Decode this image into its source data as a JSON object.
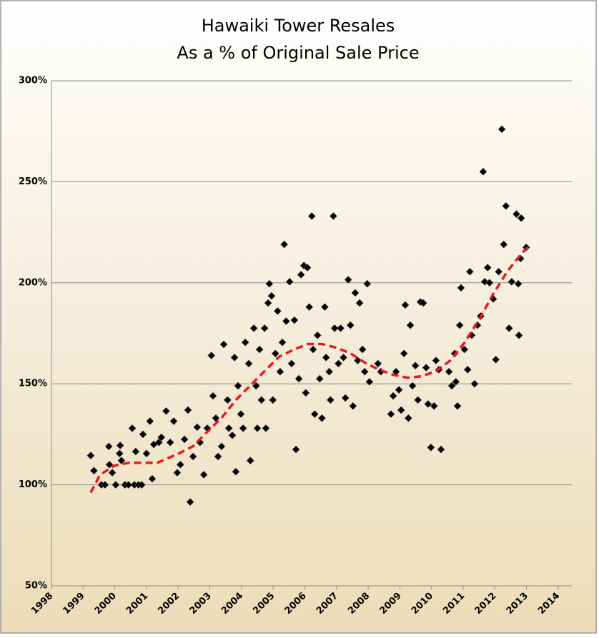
{
  "chart_data": {
    "type": "scatter",
    "title": "Hawaiki Tower Resales",
    "subtitle": "As a % of Original Sale Price",
    "color": "#000000",
    "x": [
      1999.24,
      1999.34,
      1999.58,
      1999.69,
      1999.81,
      1999.83,
      1999.92,
      2000.03,
      2000.15,
      2000.17,
      2000.21,
      2000.32,
      2000.43,
      2000.55,
      2000.62,
      2000.66,
      2000.75,
      2000.85,
      2000.89,
      2001.0,
      2001.11,
      2001.18,
      2001.23,
      2001.39,
      2001.47,
      2001.62,
      2001.75,
      2001.86,
      2001.97,
      2002.07,
      2002.2,
      2002.31,
      2002.38,
      2002.47,
      2002.6,
      2002.69,
      2002.81,
      2002.92,
      2003.05,
      2003.1,
      2003.19,
      2003.26,
      2003.37,
      2003.44,
      2003.56,
      2003.6,
      2003.71,
      2003.78,
      2003.82,
      2003.89,
      2003.98,
      2004.05,
      2004.12,
      2004.23,
      2004.28,
      2004.39,
      2004.46,
      2004.5,
      2004.57,
      2004.63,
      2004.73,
      2004.77,
      2004.84,
      2004.88,
      2004.95,
      2004.99,
      2005.07,
      2005.14,
      2005.22,
      2005.29,
      2005.35,
      2005.41,
      2005.52,
      2005.58,
      2005.67,
      2005.72,
      2005.81,
      2005.88,
      2005.97,
      2006.03,
      2006.08,
      2006.14,
      2006.22,
      2006.26,
      2006.31,
      2006.4,
      2006.47,
      2006.54,
      2006.63,
      2006.67,
      2006.77,
      2006.81,
      2006.9,
      2006.94,
      2007.06,
      2007.13,
      2007.22,
      2007.28,
      2007.37,
      2007.44,
      2007.52,
      2007.59,
      2007.67,
      2007.73,
      2007.82,
      2007.89,
      2007.97,
      2008.04,
      2008.31,
      2008.4,
      2008.72,
      2008.79,
      2008.88,
      2008.97,
      2009.04,
      2009.13,
      2009.17,
      2009.27,
      2009.33,
      2009.4,
      2009.49,
      2009.57,
      2009.65,
      2009.74,
      2009.83,
      2009.89,
      2009.98,
      2010.08,
      2010.14,
      2010.23,
      2010.3,
      2010.55,
      2010.64,
      2010.73,
      2010.77,
      2010.82,
      2010.89,
      2010.93,
      2011.04,
      2011.14,
      2011.21,
      2011.27,
      2011.36,
      2011.45,
      2011.55,
      2011.63,
      2011.68,
      2011.77,
      2011.83,
      2011.95,
      2012.03,
      2012.12,
      2012.22,
      2012.28,
      2012.35,
      2012.45,
      2012.53,
      2012.68,
      2012.74,
      2012.76,
      2012.81,
      2012.83,
      2012.99
    ],
    "values": [
      114.5,
      107,
      100,
      100,
      119,
      110,
      106,
      100,
      115.5,
      119.5,
      112,
      100,
      100,
      128,
      100,
      116.5,
      100,
      100,
      125,
      115.5,
      131.5,
      103,
      120,
      121,
      123.5,
      136.5,
      121,
      131.5,
      106,
      110,
      122.5,
      137,
      91.5,
      114,
      128.5,
      121,
      105,
      128,
      164,
      144,
      133,
      114,
      119,
      169.5,
      142,
      128,
      124.5,
      163,
      106.5,
      149,
      135,
      128,
      170.5,
      160,
      112,
      177.5,
      149,
      128,
      167,
      142,
      177.5,
      128,
      190,
      199.5,
      193.5,
      142,
      165,
      186,
      156,
      170.5,
      219,
      181,
      200.5,
      160,
      181.5,
      117.5,
      152.5,
      204,
      208.5,
      145.5,
      207.5,
      188,
      233,
      167,
      135,
      174,
      152.5,
      133,
      188,
      163,
      156,
      142,
      233,
      177.5,
      160,
      177.5,
      163,
      143,
      201.5,
      179,
      139,
      195,
      161.5,
      190,
      167,
      156,
      199.5,
      151,
      160,
      156,
      135,
      144,
      156,
      147,
      137,
      165,
      189,
      133,
      179,
      149,
      159,
      142,
      190.5,
      190,
      158,
      140,
      118.5,
      139,
      161.5,
      157,
      117.5,
      156,
      149,
      165,
      151,
      139,
      179,
      197.5,
      167,
      157,
      205.5,
      174,
      150,
      179,
      183.5,
      255,
      200.5,
      207.5,
      200,
      192,
      162,
      205.5,
      276,
      219,
      238,
      177.5,
      200.5,
      234,
      199.5,
      174,
      212,
      232,
      217.5
    ],
    "trendline": {
      "color": "#e8191c",
      "dashed": true,
      "x": [
        1999.24,
        1999.53,
        1999.99,
        2000.44,
        2000.89,
        2001.34,
        2002.02,
        2002.47,
        2002.92,
        2003.38,
        2003.83,
        2004.28,
        2004.73,
        2005.18,
        2005.63,
        2006.09,
        2006.54,
        2006.99,
        2007.44,
        2007.89,
        2008.34,
        2008.79,
        2009.24,
        2009.69,
        2010.14,
        2010.6,
        2011.05,
        2011.5,
        2011.95,
        2012.4,
        2012.85,
        2013.08
      ],
      "values": [
        96.1,
        104.9,
        109.5,
        110.9,
        110.9,
        110.9,
        115.5,
        119.1,
        126.2,
        133.3,
        142.1,
        149.2,
        156.3,
        163.3,
        166.8,
        169.7,
        169.7,
        167.9,
        165.1,
        160.5,
        157.0,
        154.5,
        153.0,
        153.7,
        156.3,
        161.6,
        170.5,
        181.8,
        194.5,
        205.8,
        214.6,
        218.2
      ]
    },
    "xlim": [
      1998,
      2014.43
    ],
    "xticks": [
      1998,
      1999,
      2000,
      2001,
      2002,
      2003,
      2004,
      2005,
      2006,
      2007,
      2008,
      2009,
      2010,
      2011,
      2012,
      2013,
      2014
    ],
    "ylim": [
      50,
      300
    ],
    "yticks": [
      {
        "value": 50,
        "label": "50%"
      },
      {
        "value": 100,
        "label": "100%"
      },
      {
        "value": 150,
        "label": "150%"
      },
      {
        "value": 200,
        "label": "200%"
      },
      {
        "value": 250,
        "label": "250%"
      },
      {
        "value": 300,
        "label": "300%"
      }
    ],
    "grid": true
  }
}
